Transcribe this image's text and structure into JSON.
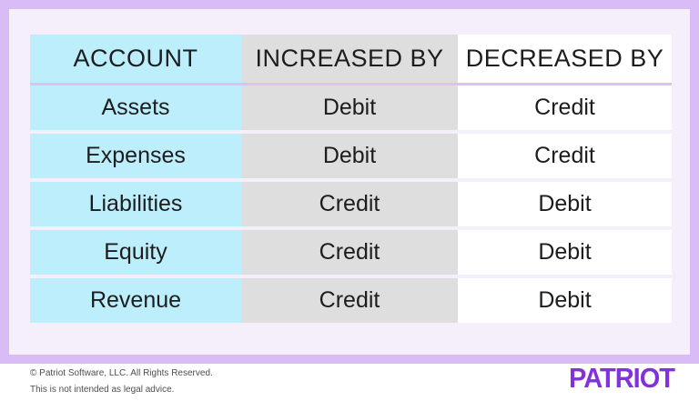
{
  "chart_data": {
    "type": "table",
    "columns": [
      "ACCOUNT",
      "INCREASED BY",
      "DECREASED BY"
    ],
    "rows": [
      [
        "Assets",
        "Debit",
        "Credit"
      ],
      [
        "Expenses",
        "Debit",
        "Credit"
      ],
      [
        "Liabilities",
        "Credit",
        "Debit"
      ],
      [
        "Equity",
        "Credit",
        "Debit"
      ],
      [
        "Revenue",
        "Credit",
        "Debit"
      ]
    ]
  },
  "table": {
    "headers": [
      "ACCOUNT",
      "INCREASED BY",
      "DECREASED BY"
    ],
    "rows": [
      {
        "account": "Assets",
        "increased_by": "Debit",
        "decreased_by": "Credit"
      },
      {
        "account": "Expenses",
        "increased_by": "Debit",
        "decreased_by": "Credit"
      },
      {
        "account": "Liabilities",
        "increased_by": "Credit",
        "decreased_by": "Debit"
      },
      {
        "account": "Equity",
        "increased_by": "Credit",
        "decreased_by": "Debit"
      },
      {
        "account": "Revenue",
        "increased_by": "Credit",
        "decreased_by": "Debit"
      }
    ]
  },
  "footer": {
    "copyright": "© Patriot Software, LLC. All Rights Reserved.",
    "disclaimer": "This is not intended as legal advice.",
    "brand": "PATRIOT"
  },
  "colors": {
    "border_purple": "#d9bbf6",
    "card_lavender": "#f5effc",
    "column_account_cyan": "#bdeefb",
    "column_increased_gray": "#dedede",
    "column_decreased_white": "#ffffff",
    "header_divider_purple": "#dcc2f1",
    "brand_purple": "#8232dd",
    "table_text": "#1d1d1f",
    "footer_text": "#4e4e4e"
  }
}
